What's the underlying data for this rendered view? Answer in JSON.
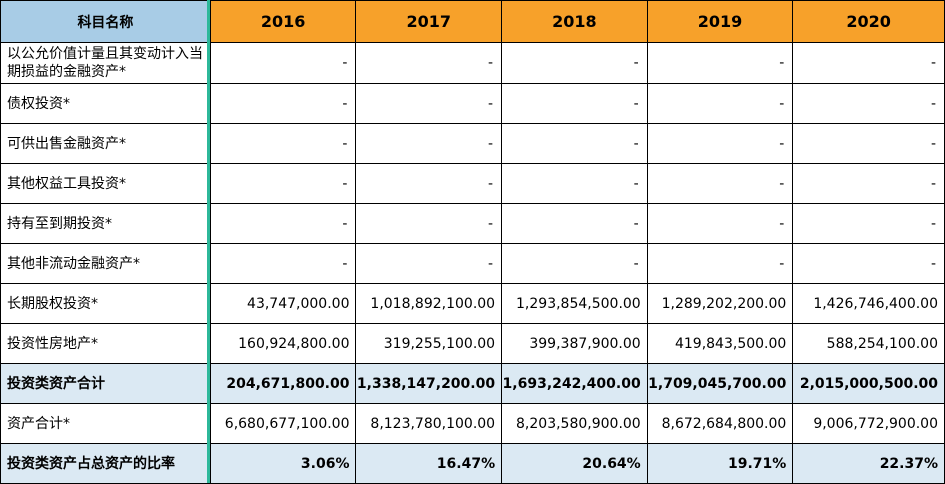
{
  "header": {
    "label": "科目名称",
    "years": [
      "2016",
      "2017",
      "2018",
      "2019",
      "2020"
    ]
  },
  "rows": [
    {
      "label": "以公允价值计量且其变动计入当期损益的金融资产*",
      "values": [
        "-",
        "-",
        "-",
        "-",
        "-"
      ]
    },
    {
      "label": "债权投资*",
      "values": [
        "-",
        "-",
        "-",
        "-",
        "-"
      ]
    },
    {
      "label": "可供出售金融资产*",
      "values": [
        "-",
        "-",
        "-",
        "-",
        "-"
      ]
    },
    {
      "label": "其他权益工具投资*",
      "values": [
        "-",
        "-",
        "-",
        "-",
        "-"
      ]
    },
    {
      "label": "持有至到期投资*",
      "values": [
        "-",
        "-",
        "-",
        "-",
        "-"
      ]
    },
    {
      "label": "其他非流动金融资产*",
      "values": [
        "-",
        "-",
        "-",
        "-",
        "-"
      ]
    },
    {
      "label": "长期股权投资*",
      "values": [
        "43,747,000.00",
        "1,018,892,100.00",
        "1,293,854,500.00",
        "1,289,202,200.00",
        "1,426,746,400.00"
      ]
    },
    {
      "label": "投资性房地产*",
      "values": [
        "160,924,800.00",
        "319,255,100.00",
        "399,387,900.00",
        "419,843,500.00",
        "588,254,100.00"
      ]
    },
    {
      "label": "投资类资产合计",
      "values": [
        "204,671,800.00",
        "1,338,147,200.00",
        "1,693,242,400.00",
        "1,709,045,700.00",
        "2,015,000,500.00"
      ],
      "highlight": true
    },
    {
      "label": "资产合计*",
      "values": [
        "6,680,677,100.00",
        "8,123,780,100.00",
        "8,203,580,900.00",
        "8,672,684,800.00",
        "9,006,772,900.00"
      ]
    },
    {
      "label": "投资类资产占总资产的比率",
      "values": [
        "3.06%",
        "16.47%",
        "20.64%",
        "19.71%",
        "22.37%"
      ],
      "highlight": true
    }
  ],
  "colors": {
    "header_year_bg": "#f7a12a",
    "header_label_bg": "#a8cce6",
    "highlight_row_bg": "#dbe9f3",
    "frozen_divider": "#2db89a"
  }
}
